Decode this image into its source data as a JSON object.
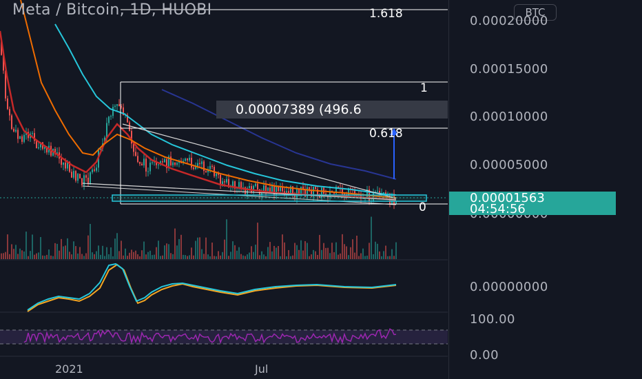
{
  "title": "Meta / Bitcoin, 1D, HUOBI",
  "currency_button": "BTC",
  "price_axis": [
    "0.00020000",
    "0.00015000",
    "0.00010000",
    "0.00005000"
  ],
  "current_price": "0.00001563",
  "countdown": "04:54:56",
  "hidden_price": "0.00000000",
  "oscillator_value": "0.00000000",
  "rsi_axis": [
    "100.00",
    "0.00"
  ],
  "time_axis": [
    "2021",
    "Jul"
  ],
  "fib_levels": [
    "1.618",
    "1",
    "0.618",
    "0"
  ],
  "tooltip": "0.00007389 (496.6",
  "colors": {
    "background": "#131722",
    "up": "#26a69a",
    "down": "#ef5350",
    "ma_red": "#c62828",
    "ma_orange": "#ef6c00",
    "ma_teal": "#26c6da",
    "ma_blue": "#283593",
    "rsi": "#9c27b0",
    "measure": "#2962ff"
  }
}
